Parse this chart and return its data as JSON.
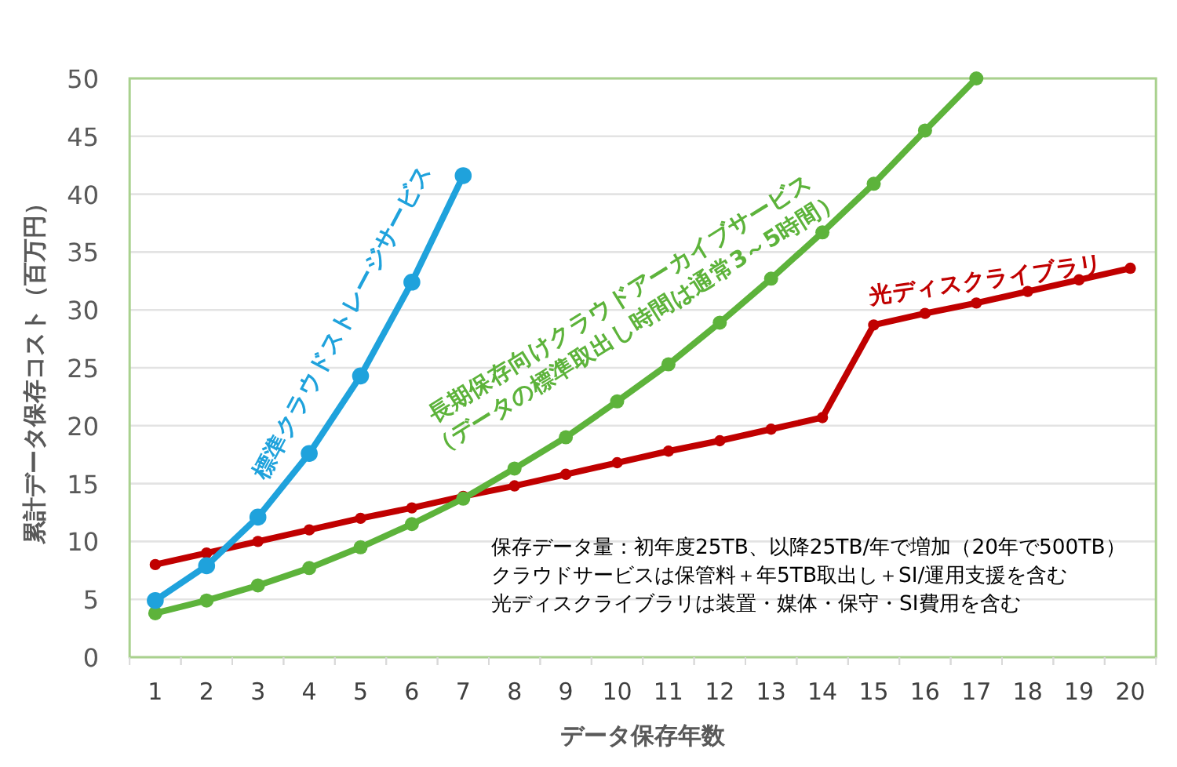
{
  "chart_data": {
    "type": "line",
    "xlabel": "データ保存年数",
    "ylabel": "累計データ保存コスト（百万円）",
    "x": [
      1,
      2,
      3,
      4,
      5,
      6,
      7,
      8,
      9,
      10,
      11,
      12,
      13,
      14,
      15,
      16,
      17,
      18,
      19,
      20
    ],
    "xlim": [
      0.5,
      20.5
    ],
    "xticks": [
      1,
      2,
      3,
      4,
      5,
      6,
      7,
      8,
      9,
      10,
      11,
      12,
      13,
      14,
      15,
      16,
      17,
      18,
      19,
      20
    ],
    "ylim": [
      0,
      50
    ],
    "yticks": [
      0,
      5,
      10,
      15,
      20,
      25,
      30,
      35,
      40,
      45,
      50
    ],
    "grid": "y",
    "marker": "circle",
    "line_style": "solid",
    "legend": false,
    "series": [
      {
        "name": "標準クラウドストレージサービス",
        "color": "#1fa2dc",
        "values": [
          4.9,
          7.9,
          12.1,
          17.6,
          24.3,
          32.4,
          41.6,
          null,
          null,
          null,
          null,
          null,
          null,
          null,
          null,
          null,
          null,
          null,
          null,
          null
        ]
      },
      {
        "name": "長期保存向けクラウドアーカイブサービス\n（データの標準取出し時間は通常3～5時間）",
        "color": "#5db33b",
        "values": [
          3.8,
          4.9,
          6.2,
          7.7,
          9.5,
          11.5,
          13.7,
          16.3,
          19.0,
          22.1,
          25.3,
          28.9,
          32.7,
          36.7,
          40.9,
          45.5,
          50,
          null,
          null,
          null
        ]
      },
      {
        "name": "光ディスクライブラリ",
        "color": "#c00000",
        "values": [
          8.0,
          9.0,
          10.0,
          11.0,
          12.0,
          12.9,
          13.9,
          14.8,
          15.8,
          16.8,
          17.8,
          18.7,
          19.7,
          20.7,
          28.7,
          29.7,
          30.6,
          31.6,
          32.6,
          33.6
        ]
      }
    ],
    "annotations": [
      "保存データ量：初年度25TB、以降25TB/年で増加（20年で500TB）",
      "クラウドサービスは保管料＋年5TB取出し＋SI/運用支援を含む",
      "光ディスクライブラリは装置・媒体・保守・SI費用を含む"
    ]
  }
}
